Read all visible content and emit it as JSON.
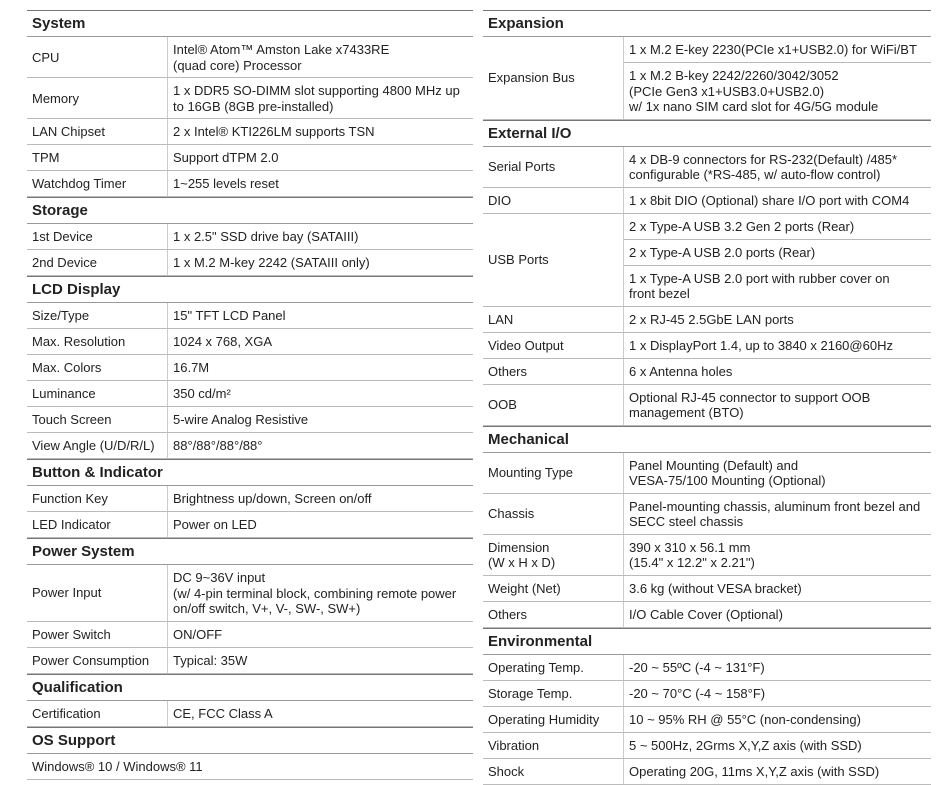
{
  "left": {
    "sections": [
      {
        "title": "System",
        "rows": [
          {
            "label": "CPU",
            "values": [
              [
                "Intel® Atom™ Amston Lake x7433RE",
                "(quad core) Processor"
              ]
            ]
          },
          {
            "label": "Memory",
            "values": [
              [
                "1 x DDR5 SO-DIMM slot supporting 4800 MHz up",
                "to 16GB (8GB pre-installed)"
              ]
            ]
          },
          {
            "label": "LAN Chipset",
            "values": [
              [
                "2 x Intel® KTI226LM supports TSN"
              ]
            ]
          },
          {
            "label": "TPM",
            "values": [
              [
                "Support dTPM 2.0"
              ]
            ]
          },
          {
            "label": "Watchdog Timer",
            "values": [
              [
                "1~255 levels reset"
              ]
            ]
          }
        ]
      },
      {
        "title": "Storage",
        "rows": [
          {
            "label": "1st Device",
            "values": [
              [
                "1 x 2.5\" SSD drive bay (SATAIII)"
              ]
            ]
          },
          {
            "label": "2nd Device",
            "values": [
              [
                "1 x M.2 M-key 2242 (SATAIII only)"
              ]
            ]
          }
        ]
      },
      {
        "title": "LCD Display",
        "rows": [
          {
            "label": "Size/Type",
            "values": [
              [
                "15\" TFT LCD Panel"
              ]
            ]
          },
          {
            "label": "Max. Resolution",
            "values": [
              [
                "1024 x 768, XGA"
              ]
            ]
          },
          {
            "label": "Max. Colors",
            "values": [
              [
                "16.7M"
              ]
            ]
          },
          {
            "label": "Luminance",
            "values": [
              [
                "350 cd/m²"
              ]
            ]
          },
          {
            "label": "Touch Screen",
            "values": [
              [
                "5-wire Analog Resistive"
              ]
            ]
          },
          {
            "label": "View Angle (U/D/R/L)",
            "values": [
              [
                "88°/88°/88°/88°"
              ]
            ]
          }
        ]
      },
      {
        "title": "Button & Indicator",
        "rows": [
          {
            "label": "Function Key",
            "values": [
              [
                "Brightness up/down, Screen on/off"
              ]
            ]
          },
          {
            "label": "LED Indicator",
            "values": [
              [
                "Power on LED"
              ]
            ]
          }
        ]
      },
      {
        "title": "Power System",
        "rows": [
          {
            "label": "Power Input",
            "values": [
              [
                "DC 9~36V input",
                "(w/ 4-pin terminal block, combining remote power",
                "on/off switch, V+, V-, SW-, SW+)"
              ]
            ]
          },
          {
            "label": "Power Switch",
            "values": [
              [
                "ON/OFF"
              ]
            ]
          },
          {
            "label": "Power Consumption",
            "values": [
              [
                "Typical: 35W"
              ]
            ]
          }
        ]
      },
      {
        "title": "Qualification",
        "rows": [
          {
            "label": "Certification",
            "values": [
              [
                "CE, FCC Class A"
              ]
            ]
          }
        ]
      },
      {
        "title": "OS Support",
        "rows": [
          {
            "values": [
              [
                "Windows® 10 / Windows® 11"
              ]
            ]
          }
        ]
      }
    ]
  },
  "right": {
    "sections": [
      {
        "title": "Expansion",
        "rows": [
          {
            "label": "Expansion Bus",
            "values": [
              [
                "1 x M.2 E-key 2230(PCIe x1+USB2.0) for WiFi/BT"
              ],
              [
                "1 x M.2 B-key 2242/2260/3042/3052",
                "(PCIe Gen3 x1+USB3.0+USB2.0)",
                "w/ 1x nano SIM card slot for 4G/5G module"
              ]
            ]
          }
        ]
      },
      {
        "title": "External I/O",
        "rows": [
          {
            "label": "Serial Ports",
            "values": [
              [
                "4 x DB-9 connectors for RS-232(Default) /485*",
                "configurable (*RS-485, w/ auto-flow control)"
              ]
            ]
          },
          {
            "label": "DIO",
            "values": [
              [
                "1 x 8bit DIO (Optional) share I/O port with COM4"
              ]
            ]
          },
          {
            "label": "USB Ports",
            "values": [
              [
                "2 x Type-A USB 3.2 Gen 2 ports (Rear)"
              ],
              [
                "2 x Type-A USB 2.0 ports (Rear)"
              ],
              [
                "1 x Type-A USB 2.0 port with rubber cover on",
                "front bezel"
              ]
            ]
          },
          {
            "label": "LAN",
            "values": [
              [
                "2 x RJ-45 2.5GbE LAN ports"
              ]
            ]
          },
          {
            "label": "Video Output",
            "values": [
              [
                "1 x DisplayPort 1.4, up to 3840 x 2160@60Hz"
              ]
            ]
          },
          {
            "label": "Others",
            "values": [
              [
                "6 x Antenna holes"
              ]
            ]
          },
          {
            "label": "OOB",
            "values": [
              [
                "Optional RJ-45 connector to support OOB",
                "management (BTO)"
              ]
            ]
          }
        ]
      },
      {
        "title": "Mechanical",
        "rows": [
          {
            "label": "Mounting Type",
            "values": [
              [
                "Panel Mounting (Default) and",
                "VESA-75/100 Mounting (Optional)"
              ]
            ]
          },
          {
            "label": "Chassis",
            "values": [
              [
                "Panel-mounting chassis, aluminum front bezel and",
                "SECC steel chassis"
              ]
            ]
          },
          {
            "label": "Dimension\n(W x H x D)",
            "values": [
              [
                "390 x 310 x 56.1 mm",
                "(15.4\" x 12.2\" x 2.21\")"
              ]
            ]
          },
          {
            "label": "Weight (Net)",
            "values": [
              [
                "3.6 kg (without VESA bracket)"
              ]
            ]
          },
          {
            "label": "Others",
            "values": [
              [
                "I/O Cable Cover (Optional)"
              ]
            ]
          }
        ]
      },
      {
        "title": "Environmental",
        "rows": [
          {
            "label": "Operating Temp.",
            "values": [
              [
                "-20 ~ 55ºC (-4 ~ 131°F)"
              ]
            ]
          },
          {
            "label": "Storage Temp.",
            "values": [
              [
                "-20 ~ 70°C (-4 ~ 158°F)"
              ]
            ]
          },
          {
            "label": "Operating Humidity",
            "values": [
              [
                "10 ~ 95% RH @ 55°C (non-condensing)"
              ]
            ]
          },
          {
            "label": "Vibration",
            "values": [
              [
                "5 ~ 500Hz, 2Grms X,Y,Z axis (with SSD)"
              ]
            ]
          },
          {
            "label": "Shock",
            "values": [
              [
                "Operating 20G, 11ms X,Y,Z axis (with SSD)"
              ]
            ]
          }
        ]
      }
    ]
  }
}
